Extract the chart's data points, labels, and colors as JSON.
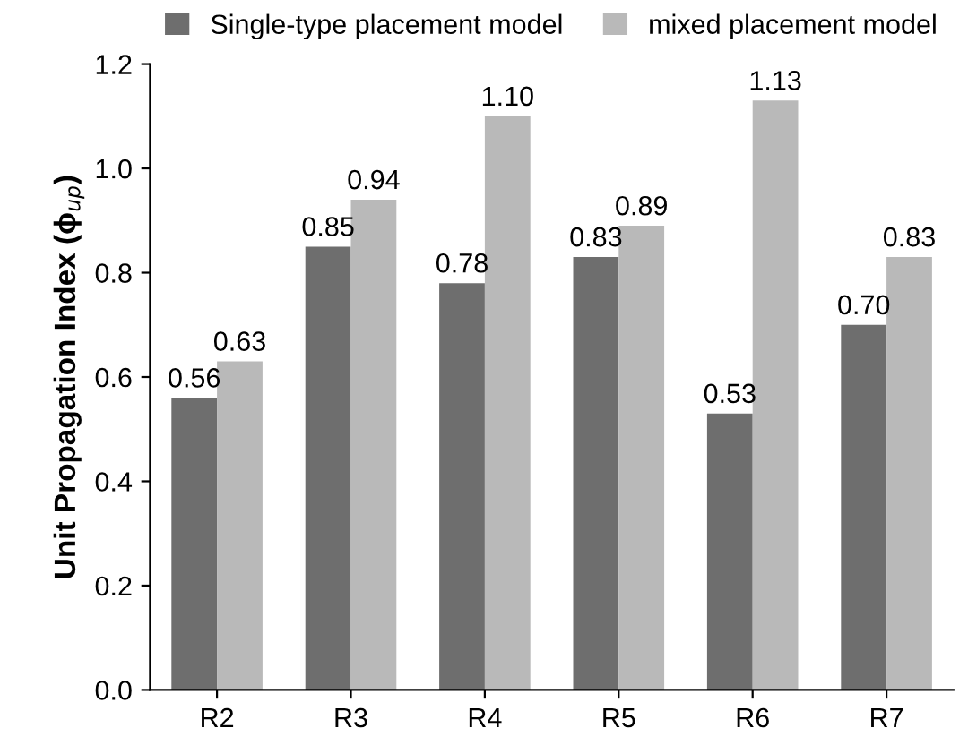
{
  "chart_data": {
    "type": "bar",
    "ylabel": "Unit Propagation Index (ϕ$_{up}$)",
    "categories": [
      "R2",
      "R3",
      "R4",
      "R5",
      "R6",
      "R7"
    ],
    "series": [
      {
        "name": "Single-type placement model",
        "color": "#6e6e6e",
        "values": [
          0.56,
          0.85,
          0.78,
          0.83,
          0.53,
          0.7
        ],
        "value_labels": [
          "0.56",
          "0.85",
          "0.78",
          "0.83",
          "0.53",
          "0.70"
        ]
      },
      {
        "name": "mixed placement model",
        "color": "#b9b9b9",
        "values": [
          0.63,
          0.94,
          1.1,
          0.89,
          1.13,
          0.83
        ],
        "value_labels": [
          "0.63",
          "0.94",
          "1.10",
          "0.89",
          "1.13",
          "0.83"
        ]
      }
    ],
    "ylim": [
      0,
      1.2
    ],
    "yticks": [
      {
        "value": 0,
        "label": "0.0"
      },
      0.2,
      0.4,
      0.6,
      0.8,
      {
        "value": 1,
        "label": "1.0"
      },
      1.2
    ],
    "grid": false,
    "legend": "top"
  }
}
